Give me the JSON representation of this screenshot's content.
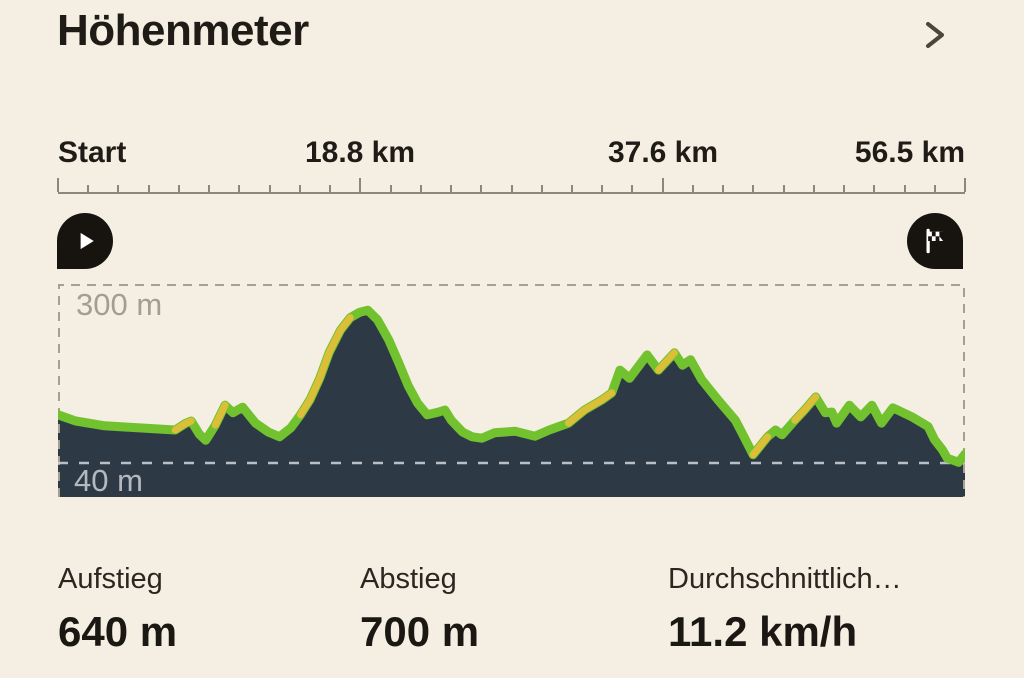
{
  "header": {
    "title": "Höhenmeter",
    "chevron_icon": "chevron-right"
  },
  "ruler": {
    "labels": [
      "Start",
      "18.8 km",
      "37.6 km",
      "56.5 km"
    ],
    "minor_intervals": 30,
    "major_every": 10
  },
  "markers": {
    "start_icon": "play",
    "end_icon": "finish-flag"
  },
  "chart": {
    "upper_gridline_label": "300 m",
    "lower_gridline_label": "40 m"
  },
  "chart_data": {
    "type": "area",
    "title": "Höhenmeter",
    "x_unit": "km",
    "y_unit": "m",
    "x_range": [
      0,
      56.5
    ],
    "x_tick_labels": [
      "Start",
      "18.8 km",
      "37.6 km",
      "56.5 km"
    ],
    "x_tick_km": [
      0,
      18.8,
      37.6,
      56.5
    ],
    "gridlines_m": [
      40,
      300
    ],
    "grid_style": "dashed",
    "series": [
      {
        "name": "elevation",
        "points": [
          [
            0,
            110
          ],
          [
            1.1,
            101
          ],
          [
            2.9,
            94
          ],
          [
            5.1,
            91
          ],
          [
            7.3,
            88
          ],
          [
            7.9,
            97
          ],
          [
            8.3,
            101
          ],
          [
            8.8,
            82
          ],
          [
            9.2,
            73
          ],
          [
            9.8,
            95
          ],
          [
            10.4,
            124
          ],
          [
            10.9,
            113
          ],
          [
            11.5,
            121
          ],
          [
            12.3,
            98
          ],
          [
            13.1,
            85
          ],
          [
            13.8,
            78
          ],
          [
            14.5,
            91
          ],
          [
            15.1,
            110
          ],
          [
            15.7,
            132
          ],
          [
            16.3,
            163
          ],
          [
            16.9,
            201
          ],
          [
            17.6,
            233
          ],
          [
            18.2,
            251
          ],
          [
            18.8,
            259
          ],
          [
            19.3,
            262
          ],
          [
            19.9,
            248
          ],
          [
            20.6,
            219
          ],
          [
            21.2,
            187
          ],
          [
            21.8,
            153
          ],
          [
            22.4,
            127
          ],
          [
            23.0,
            110
          ],
          [
            23.7,
            114
          ],
          [
            24.1,
            117
          ],
          [
            24.5,
            102
          ],
          [
            25.2,
            85
          ],
          [
            25.8,
            78
          ],
          [
            26.4,
            76
          ],
          [
            27.2,
            84
          ],
          [
            28.5,
            86
          ],
          [
            29.7,
            79
          ],
          [
            30.6,
            88
          ],
          [
            31.8,
            98
          ],
          [
            32.8,
            117
          ],
          [
            33.9,
            132
          ],
          [
            34.5,
            142
          ],
          [
            35.0,
            175
          ],
          [
            35.6,
            163
          ],
          [
            36.7,
            197
          ],
          [
            37.4,
            175
          ],
          [
            38.4,
            200
          ],
          [
            38.9,
            182
          ],
          [
            39.4,
            190
          ],
          [
            40.1,
            161
          ],
          [
            41.1,
            132
          ],
          [
            42.2,
            102
          ],
          [
            42.6,
            84
          ],
          [
            43.3,
            52
          ],
          [
            44.2,
            78
          ],
          [
            44.7,
            88
          ],
          [
            45.1,
            81
          ],
          [
            45.9,
            102
          ],
          [
            46.5,
            117
          ],
          [
            47.2,
            136
          ],
          [
            47.8,
            113
          ],
          [
            48.2,
            114
          ],
          [
            48.5,
            98
          ],
          [
            49.3,
            124
          ],
          [
            50.0,
            107
          ],
          [
            50.7,
            124
          ],
          [
            51.3,
            98
          ],
          [
            52.0,
            120
          ],
          [
            52.3,
            117
          ],
          [
            53.2,
            107
          ],
          [
            54.2,
            93
          ],
          [
            54.6,
            74
          ],
          [
            55.1,
            59
          ],
          [
            55.4,
            47
          ],
          [
            56.1,
            41
          ],
          [
            56.5,
            53
          ]
        ]
      }
    ],
    "steep_segments_yellow": [
      [
        4,
        6
      ],
      [
        9,
        10
      ],
      [
        17,
        22
      ],
      [
        41,
        44
      ],
      [
        48,
        49
      ],
      [
        56,
        57
      ],
      [
        60,
        62
      ]
    ],
    "colors": {
      "background": "#f5efe3",
      "area_fill": "#2d3a46",
      "line_green": "#72c230",
      "line_steep_yellow": "#e0bf3a",
      "grid_dash_outer": "#a6a091",
      "grid_dash_inner": "#c9ced3"
    }
  },
  "stats": [
    {
      "label": "Aufstieg",
      "value": "640 m"
    },
    {
      "label": "Abstieg",
      "value": "700 m"
    },
    {
      "label": "Durchschnittlich…",
      "value": "11.2 km/h"
    }
  ]
}
